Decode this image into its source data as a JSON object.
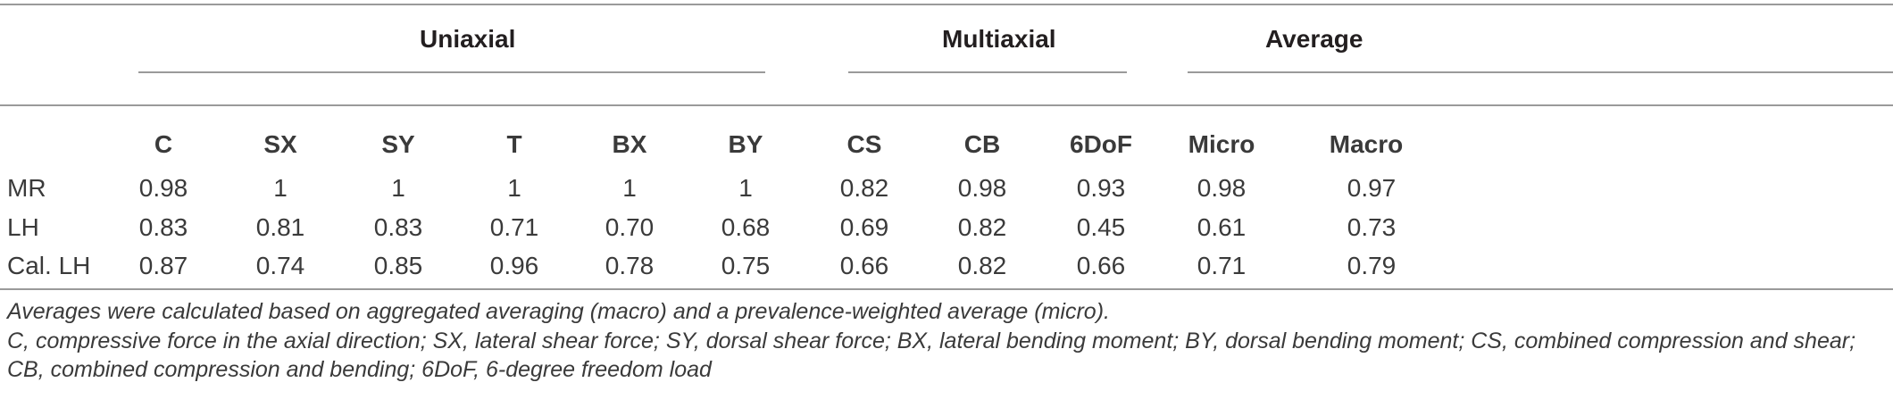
{
  "groups": {
    "uniaxial": "Uniaxial",
    "multiaxial": "Multiaxial",
    "average": "Average"
  },
  "columns": [
    "C",
    "SX",
    "SY",
    "T",
    "BX",
    "BY",
    "CS",
    "CB",
    "6DoF",
    "Micro",
    "Macro"
  ],
  "rows": [
    {
      "label": "MR",
      "values": [
        "0.98",
        "1",
        "1",
        "1",
        "1",
        "1",
        "0.82",
        "0.98",
        "0.93",
        "0.98",
        "0.97"
      ]
    },
    {
      "label": "LH",
      "values": [
        "0.83",
        "0.81",
        "0.83",
        "0.71",
        "0.70",
        "0.68",
        "0.69",
        "0.82",
        "0.45",
        "0.61",
        "0.73"
      ]
    },
    {
      "label": "Cal. LH",
      "values": [
        "0.87",
        "0.74",
        "0.85",
        "0.96",
        "0.78",
        "0.75",
        "0.66",
        "0.82",
        "0.66",
        "0.71",
        "0.79"
      ]
    }
  ],
  "footnotes": [
    "Averages were calculated based on aggregated averaging (macro) and a prevalence-weighted average (micro).",
    "C, compressive force in the axial direction; SX, lateral shear force; SY, dorsal shear force; BX, lateral bending moment; BY, dorsal bending moment; CS, combined compression and shear; CB, combined compression and bending; 6DoF, 6-degree freedom load"
  ]
}
